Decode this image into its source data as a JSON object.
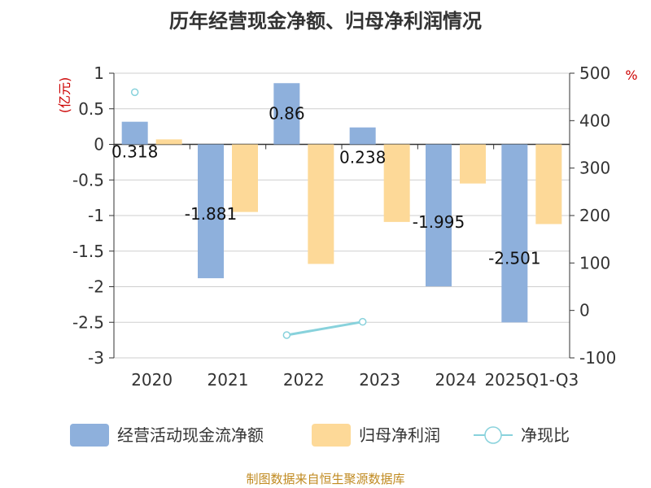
{
  "chart_data": {
    "type": "bar",
    "title": "历年经营现金净额、归母净利润情况",
    "categories": [
      "2020",
      "2021",
      "2022",
      "2023",
      "2024",
      "2025Q1-Q3"
    ],
    "left_axis": {
      "unit": "(亿元)",
      "ylim": [
        -3,
        1
      ],
      "ticks": [
        "1",
        "0.5",
        "0",
        "-0.5",
        "-1",
        "-1.5",
        "-2",
        "-2.5",
        "-3"
      ],
      "tick_values": [
        1,
        0.5,
        0,
        -0.5,
        -1,
        -1.5,
        -2,
        -2.5,
        -3
      ]
    },
    "right_axis": {
      "unit": "%",
      "ylim": [
        -100,
        500
      ],
      "ticks": [
        "500",
        "400",
        "300",
        "200",
        "100",
        "0",
        "-100"
      ],
      "tick_values": [
        500,
        400,
        300,
        200,
        100,
        0,
        -100
      ]
    },
    "series": [
      {
        "name": "经营活动现金流净额",
        "color": "#8eb0dc",
        "axis": "left",
        "values": [
          0.318,
          -1.881,
          0.86,
          0.238,
          -1.995,
          -2.501
        ],
        "labels": [
          "0.318",
          "-1.881",
          "0.86",
          "0.238",
          "-1.995",
          "-2.501"
        ]
      },
      {
        "name": "归母净利润",
        "color": "#fdd998",
        "axis": "left",
        "values": [
          0.07,
          -0.95,
          -1.68,
          -1.09,
          -0.55,
          -1.12
        ]
      },
      {
        "name": "净现比",
        "color": "#88d2dc",
        "axis": "right",
        "type": "line",
        "values": [
          460,
          null,
          -52,
          -24,
          null,
          null
        ]
      }
    ],
    "grid": true,
    "legend": "bottom"
  },
  "source": "制图数据来自恒生聚源数据库"
}
